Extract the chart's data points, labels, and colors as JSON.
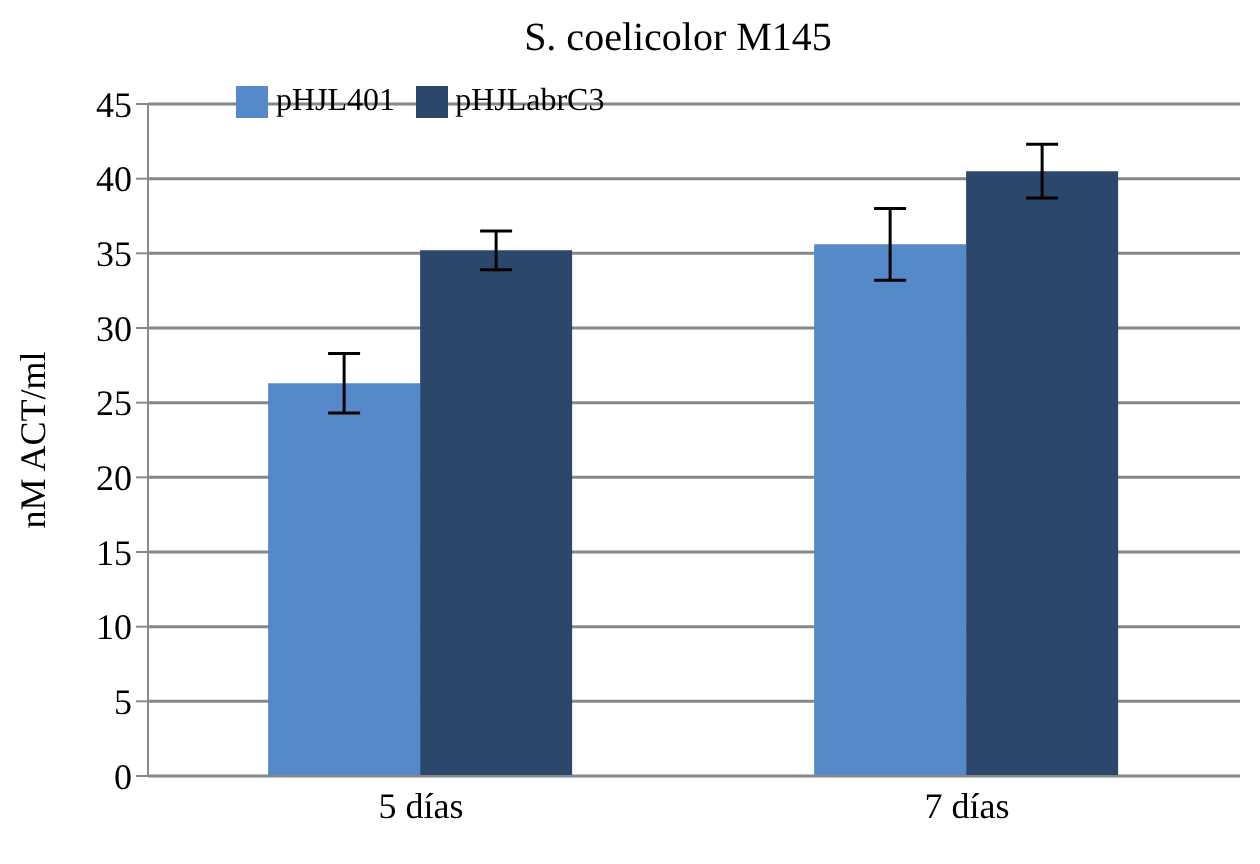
{
  "chart_data": {
    "type": "bar",
    "title": "S. coelicolor M145",
    "ylabel": "nM ACT/ml",
    "categories": [
      "5 días",
      "7 días"
    ],
    "series": [
      {
        "name": "pHJL401",
        "color": "#5689c9",
        "values": [
          26.3,
          35.6
        ],
        "errors": [
          2,
          2.4
        ]
      },
      {
        "name": "pHJLabrC3",
        "color": "#2c476c",
        "values": [
          35.2,
          40.5
        ],
        "errors": [
          1.3,
          1.8
        ]
      }
    ],
    "ylim": [
      0,
      45
    ],
    "yticks": [
      0,
      5,
      10,
      15,
      20,
      25,
      30,
      35,
      40,
      45
    ],
    "grid": "y",
    "legend": "top left"
  }
}
